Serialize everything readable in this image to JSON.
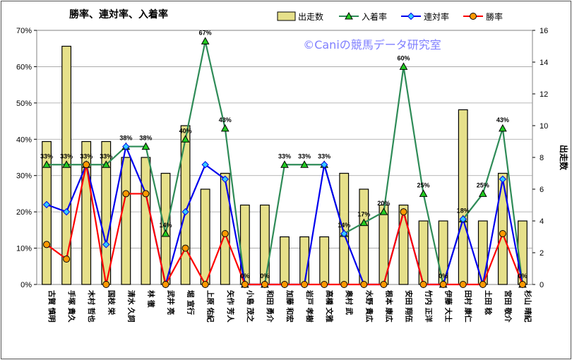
{
  "chart_data": {
    "type": "bar+line",
    "title": "勝率、連対率、入着率",
    "watermark": "©Caniの競馬データ研究室",
    "y_left_ticks": [
      "0%",
      "10%",
      "20%",
      "30%",
      "40%",
      "50%",
      "60%",
      "70%"
    ],
    "y_left_range": [
      0,
      70
    ],
    "y_right_label": "出走数",
    "y_right_ticks": [
      "0",
      "2",
      "4",
      "6",
      "8",
      "10",
      "12",
      "14",
      "16"
    ],
    "y_right_range": [
      0,
      16
    ],
    "grid": true,
    "legend_position": "top",
    "categories": [
      "古賀 慎明",
      "手塚 貴久",
      "木村 哲也",
      "国枝 栄",
      "清水 久詞",
      "林 徹",
      "武井 亮",
      "堀 宣行",
      "上原 佑紀",
      "矢作 芳人",
      "小島 茂之",
      "和田 勇介",
      "加藤 和宏",
      "岩戸 孝樹",
      "高橋 文雅",
      "奥村 武",
      "水野 貴広",
      "根本 康広",
      "安田 翔伍",
      "竹内 正洋",
      "伊藤 大士",
      "田村 康仁",
      "土田 稔",
      "宮田 敬介",
      "杉山 晴紀"
    ],
    "series": [
      {
        "name": "出走数",
        "type": "bar",
        "axis": "right",
        "color": "#e6e08a",
        "values": [
          9,
          15,
          9,
          9,
          8,
          8,
          7,
          10,
          6,
          7,
          5,
          5,
          3,
          3,
          3,
          7,
          6,
          5,
          5,
          4,
          4,
          11,
          4,
          7,
          4
        ]
      },
      {
        "name": "入着率",
        "type": "line",
        "axis": "left",
        "color": "#2e8b57",
        "marker_color": "#22cc22",
        "values": [
          33,
          33,
          33,
          33,
          38,
          38,
          14,
          40,
          67,
          43,
          0,
          0,
          33,
          33,
          33,
          14,
          17,
          20,
          60,
          25,
          0,
          18,
          25,
          43,
          0
        ]
      },
      {
        "name": "連対率",
        "type": "line",
        "axis": "left",
        "color": "#0000ee",
        "marker_color": "#33ccff",
        "values": [
          22,
          20,
          33,
          11,
          38,
          25,
          0,
          20,
          33,
          29,
          0,
          0,
          0,
          0,
          33,
          14,
          0,
          0,
          20,
          0,
          0,
          18,
          0,
          29,
          0
        ]
      },
      {
        "name": "勝率",
        "type": "line",
        "axis": "left",
        "color": "#ff0000",
        "marker_color": "#ff9900",
        "values": [
          11,
          7,
          33,
          0,
          25,
          25,
          0,
          10,
          0,
          14,
          0,
          0,
          0,
          0,
          0,
          0,
          0,
          0,
          20,
          0,
          0,
          0,
          0,
          14,
          0
        ]
      }
    ],
    "data_labels": [
      "33%",
      "33%",
      "33%",
      "33%",
      "38%",
      "38%",
      "14%",
      "40%",
      "67%",
      "43%",
      "0%",
      "0%",
      "33%",
      "33%",
      "33%",
      "14%",
      "17%",
      "20%",
      "60%",
      "25%",
      "0%",
      "18%",
      "25%",
      "43%",
      "0%"
    ]
  }
}
